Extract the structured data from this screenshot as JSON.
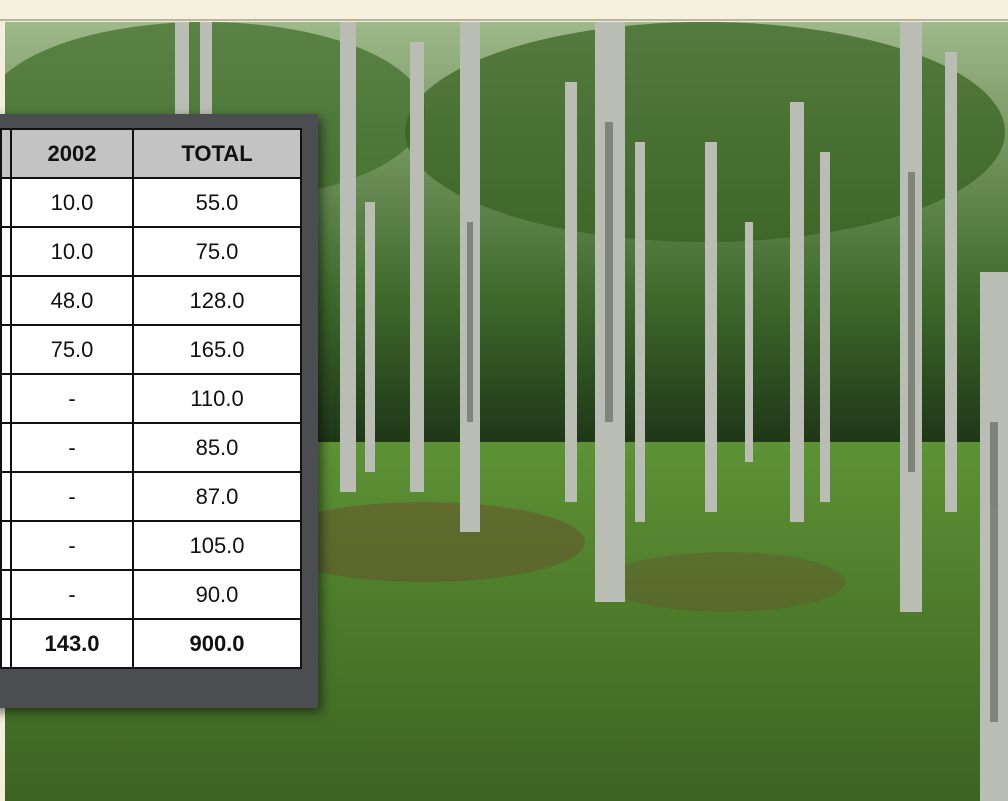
{
  "table": {
    "header": [
      "2002",
      "TOTAL"
    ],
    "rows": [
      [
        "10.0",
        "55.0"
      ],
      [
        "10.0",
        "75.0"
      ],
      [
        "48.0",
        "128.0"
      ],
      [
        "75.0",
        "165.0"
      ],
      [
        "-",
        "110.0"
      ],
      [
        "-",
        "85.0"
      ],
      [
        "-",
        "87.0"
      ],
      [
        "-",
        "105.0"
      ],
      [
        "-",
        "90.0"
      ],
      [
        "143.0",
        "900.0"
      ]
    ]
  }
}
